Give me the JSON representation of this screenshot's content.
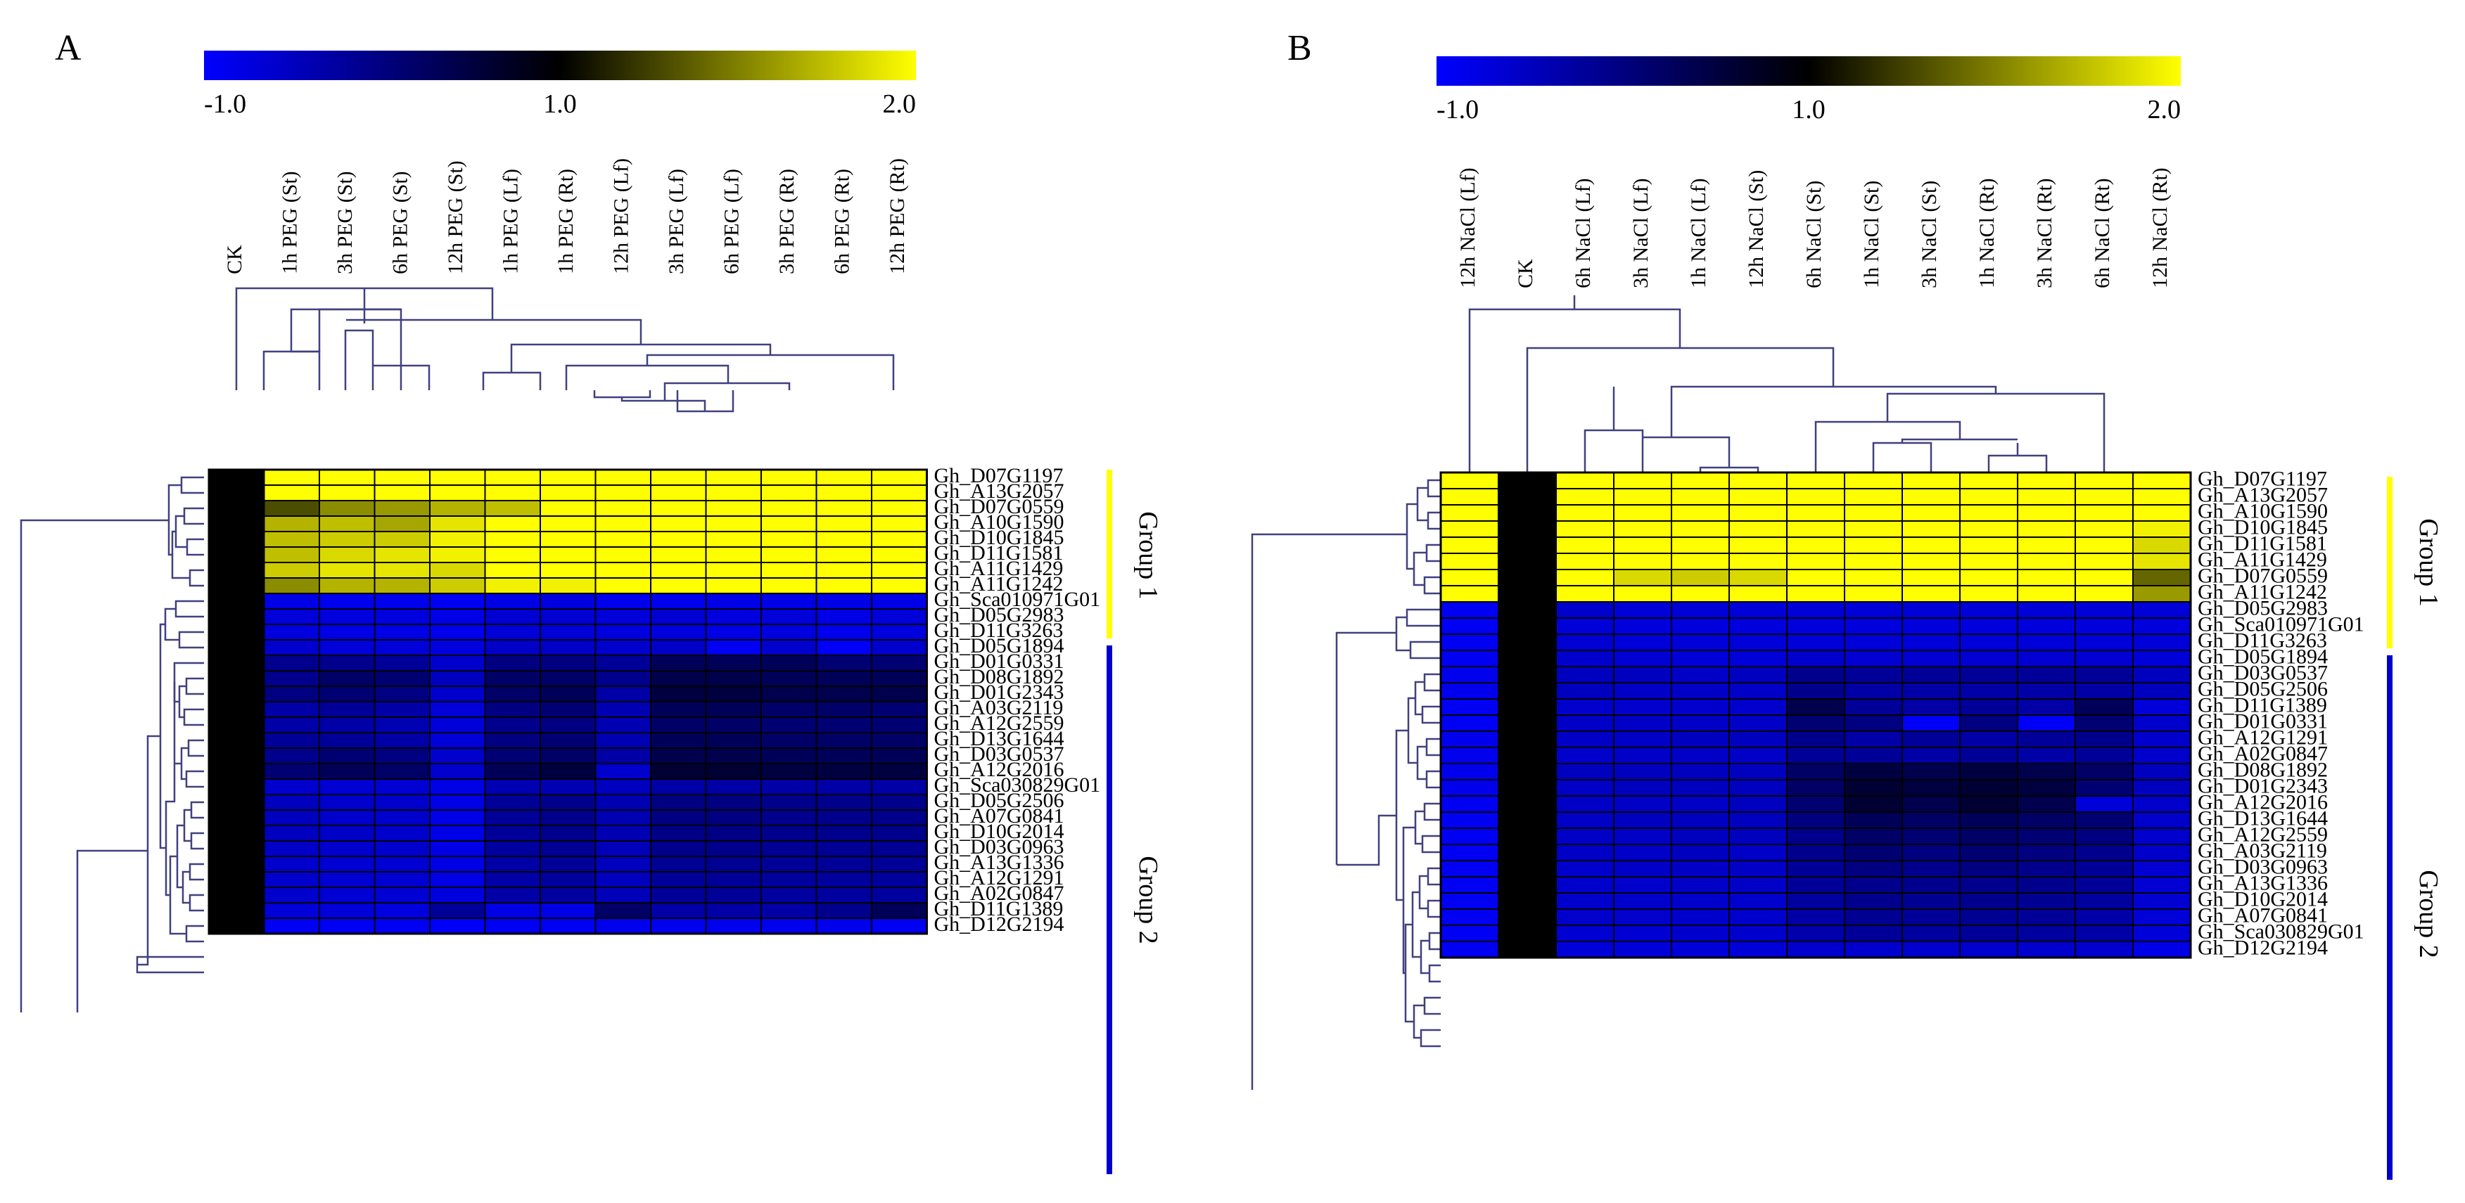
{
  "figure": {
    "panels": [
      "A",
      "B"
    ]
  },
  "chart_data": [
    {
      "type": "heatmap",
      "panel_label": "A",
      "colorbar": {
        "min_label": "-1.0",
        "mid_label": "1.0",
        "max_label": "2.0",
        "min": -1.0,
        "mid": 1.0,
        "max": 2.0,
        "colors": [
          "#0000ff",
          "#000000",
          "#ffff00"
        ]
      },
      "columns": [
        "CK",
        "1h PEG (St)",
        "3h PEG (St)",
        "6h PEG (St)",
        "12h PEG (St)",
        "1h PEG (Lf)",
        "1h PEG (Rt)",
        "12h PEG (Lf)",
        "3h PEG (Lf)",
        "6h PEG (Lf)",
        "3h PEG (Rt)",
        "6h PEG (Rt)",
        "12h PEG (Rt)"
      ],
      "rows": [
        "Gh_D07G1197",
        "Gh_A13G2057",
        "Gh_D07G0559",
        "Gh_A10G1590",
        "Gh_D10G1845",
        "Gh_D11G1581",
        "Gh_A11G1429",
        "Gh_A11G1242",
        "Gh_Sca010971G01",
        "Gh_D05G2983",
        "Gh_D11G3263",
        "Gh_D05G1894",
        "Gh_D01G0331",
        "Gh_D08G1892",
        "Gh_D01G2343",
        "Gh_A03G2119",
        "Gh_A12G2559",
        "Gh_D13G1644",
        "Gh_D03G0537",
        "Gh_A12G2016",
        "Gh_Sca030829G01",
        "Gh_D05G2506",
        "Gh_A07G0841",
        "Gh_D10G2014",
        "Gh_D03G0963",
        "Gh_A13G1336",
        "Gh_A12G1291",
        "Gh_A02G0847",
        "Gh_D11G1389",
        "Gh_D12G2194"
      ],
      "values": [
        [
          1.0,
          2.0,
          2.0,
          2.0,
          2.0,
          2.0,
          2.0,
          2.0,
          2.0,
          2.0,
          2.0,
          2.0,
          2.0
        ],
        [
          1.0,
          2.0,
          2.0,
          2.0,
          2.0,
          2.0,
          2.0,
          2.0,
          2.0,
          2.0,
          2.0,
          2.0,
          2.0
        ],
        [
          1.0,
          1.3,
          1.55,
          1.6,
          1.7,
          1.75,
          2.0,
          2.0,
          2.0,
          2.0,
          2.0,
          2.0,
          2.0
        ],
        [
          1.0,
          1.7,
          1.75,
          1.65,
          1.9,
          2.0,
          2.0,
          2.0,
          2.0,
          2.0,
          2.0,
          2.0,
          2.0
        ],
        [
          1.0,
          1.75,
          1.8,
          1.8,
          1.95,
          2.0,
          2.0,
          2.0,
          2.0,
          2.0,
          2.0,
          2.0,
          2.0
        ],
        [
          1.0,
          1.75,
          1.85,
          1.9,
          1.95,
          2.0,
          2.0,
          2.0,
          2.0,
          2.0,
          2.0,
          2.0,
          2.0
        ],
        [
          1.0,
          1.8,
          1.9,
          1.9,
          1.85,
          2.0,
          2.0,
          2.0,
          2.0,
          2.0,
          2.0,
          2.0,
          2.0
        ],
        [
          1.0,
          1.55,
          1.7,
          1.7,
          1.8,
          1.95,
          1.95,
          2.0,
          2.0,
          2.0,
          2.0,
          2.0,
          2.0
        ],
        [
          1.0,
          -0.8,
          -0.85,
          -0.85,
          -0.9,
          -0.8,
          -0.75,
          -0.85,
          -0.85,
          -0.8,
          -0.8,
          -0.8,
          -0.8
        ],
        [
          1.0,
          -0.7,
          -0.75,
          -0.75,
          -0.8,
          -0.65,
          -0.65,
          -0.7,
          -0.65,
          -0.75,
          -0.7,
          -0.8,
          -0.7
        ],
        [
          1.0,
          -0.75,
          -0.8,
          -0.8,
          -0.85,
          -0.7,
          -0.7,
          -0.75,
          -0.75,
          -0.8,
          -0.75,
          -0.85,
          -0.75
        ],
        [
          1.0,
          -0.6,
          -0.7,
          -0.7,
          -0.75,
          -0.55,
          -0.55,
          -0.6,
          -0.55,
          -0.9,
          -0.6,
          -0.95,
          -0.6
        ],
        [
          1.0,
          -0.1,
          -0.1,
          -0.2,
          -0.6,
          0.0,
          0.0,
          -0.2,
          0.3,
          0.3,
          0.3,
          0.1,
          0.1
        ],
        [
          1.0,
          -0.1,
          0.2,
          0.1,
          -0.5,
          0.2,
          0.2,
          -0.1,
          0.4,
          0.4,
          0.3,
          0.3,
          0.3
        ],
        [
          1.0,
          0.0,
          0.1,
          0.0,
          -0.6,
          0.2,
          0.3,
          -0.3,
          0.5,
          0.5,
          0.4,
          0.4,
          0.4
        ],
        [
          1.0,
          -0.3,
          -0.2,
          -0.3,
          -0.7,
          0.0,
          0.1,
          -0.4,
          0.3,
          0.3,
          0.2,
          0.2,
          0.1
        ],
        [
          1.0,
          -0.3,
          -0.3,
          -0.4,
          -0.7,
          -0.1,
          0.0,
          -0.4,
          0.2,
          0.2,
          0.1,
          0.1,
          0.1
        ],
        [
          1.0,
          -0.2,
          -0.2,
          -0.3,
          -0.7,
          0.0,
          0.1,
          -0.4,
          0.3,
          0.3,
          0.2,
          0.2,
          0.2
        ],
        [
          1.0,
          -0.1,
          0.1,
          0.0,
          -0.6,
          0.1,
          0.2,
          -0.3,
          0.4,
          0.4,
          0.3,
          0.3,
          0.3
        ],
        [
          1.0,
          0.1,
          0.3,
          0.2,
          -0.6,
          0.3,
          0.5,
          -0.6,
          0.6,
          0.6,
          0.5,
          0.5,
          0.5
        ],
        [
          1.0,
          -0.6,
          -0.65,
          -0.65,
          -0.8,
          -0.4,
          -0.4,
          -0.5,
          -0.3,
          -0.3,
          -0.3,
          -0.3,
          -0.3
        ],
        [
          1.0,
          -0.5,
          -0.6,
          -0.6,
          -0.8,
          -0.2,
          -0.1,
          -0.4,
          0.0,
          0.0,
          -0.1,
          -0.1,
          -0.1
        ],
        [
          1.0,
          -0.5,
          -0.6,
          -0.6,
          -0.8,
          -0.2,
          -0.1,
          -0.4,
          0.0,
          0.0,
          -0.1,
          -0.1,
          -0.1
        ],
        [
          1.0,
          -0.5,
          -0.55,
          -0.6,
          -0.8,
          -0.2,
          -0.1,
          -0.4,
          -0.05,
          -0.05,
          -0.1,
          -0.1,
          -0.1
        ],
        [
          1.0,
          -0.55,
          -0.6,
          -0.6,
          -0.8,
          -0.25,
          -0.15,
          -0.45,
          -0.1,
          -0.1,
          -0.15,
          -0.15,
          -0.15
        ],
        [
          1.0,
          -0.6,
          -0.65,
          -0.65,
          -0.8,
          -0.3,
          -0.2,
          -0.5,
          -0.15,
          -0.15,
          -0.2,
          -0.2,
          -0.2
        ],
        [
          1.0,
          -0.6,
          -0.65,
          -0.65,
          -0.8,
          -0.3,
          -0.25,
          -0.5,
          -0.2,
          -0.2,
          -0.25,
          -0.25,
          -0.25
        ],
        [
          1.0,
          -0.6,
          -0.65,
          -0.65,
          -0.75,
          -0.3,
          -0.25,
          -0.45,
          -0.2,
          -0.2,
          -0.25,
          -0.25,
          -0.25
        ],
        [
          1.0,
          -0.7,
          -0.7,
          -0.75,
          -0.2,
          -0.8,
          -0.8,
          0.2,
          -0.3,
          -0.3,
          -0.3,
          -0.1,
          0.3
        ],
        [
          1.0,
          -0.9,
          -0.9,
          -0.9,
          -0.95,
          -0.9,
          -0.9,
          -0.85,
          -0.85,
          -0.85,
          -0.85,
          -0.85,
          -0.9
        ]
      ],
      "groups": [
        {
          "label": "Group 1",
          "from_row": 0,
          "to_row": 7,
          "color": "#ffff00"
        },
        {
          "label": "Group 2",
          "from_row": 8,
          "to_row": 29,
          "color": "#0000cc"
        }
      ]
    },
    {
      "type": "heatmap",
      "panel_label": "B",
      "colorbar": {
        "min_label": "-1.0",
        "mid_label": "1.0",
        "max_label": "2.0",
        "min": -1.0,
        "mid": 1.0,
        "max": 2.0,
        "colors": [
          "#0000ff",
          "#000000",
          "#ffff00"
        ]
      },
      "columns": [
        "12h NaCl (Lf)",
        "CK",
        "6h NaCl (Lf)",
        "3h NaCl (Lf)",
        "1h NaCl (Lf)",
        "12h NaCl (St)",
        "6h NaCl (St)",
        "1h NaCl (St)",
        "3h NaCl (St)",
        "1h NaCl (Rt)",
        "3h NaCl (Rt)",
        "6h NaCl (Rt)",
        "12h NaCl (Rt)"
      ],
      "rows": [
        "Gh_D07G1197",
        "Gh_A13G2057",
        "Gh_A10G1590",
        "Gh_D10G1845",
        "Gh_D11G1581",
        "Gh_A11G1429",
        "Gh_D07G0559",
        "Gh_A11G1242",
        "Gh_D05G2983",
        "Gh_Sca010971G01",
        "Gh_D11G3263",
        "Gh_D05G1894",
        "Gh_D03G0537",
        "Gh_D05G2506",
        "Gh_D11G1389",
        "Gh_D01G0331",
        "Gh_A12G1291",
        "Gh_A02G0847",
        "Gh_D08G1892",
        "Gh_D01G2343",
        "Gh_A12G2016",
        "Gh_D13G1644",
        "Gh_A12G2559",
        "Gh_A03G2119",
        "Gh_D03G0963",
        "Gh_A13G1336",
        "Gh_D10G2014",
        "Gh_A07G0841",
        "Gh_Sca030829G01",
        "Gh_D12G2194"
      ],
      "values": [
        [
          2.0,
          1.0,
          2.0,
          2.0,
          2.0,
          2.0,
          2.0,
          2.0,
          2.0,
          2.0,
          2.0,
          2.0,
          2.0
        ],
        [
          2.0,
          1.0,
          2.0,
          2.0,
          2.0,
          2.0,
          2.0,
          2.0,
          2.0,
          2.0,
          2.0,
          2.0,
          2.0
        ],
        [
          2.0,
          1.0,
          2.0,
          2.0,
          2.0,
          2.0,
          2.0,
          2.0,
          2.0,
          2.0,
          2.0,
          2.0,
          2.0
        ],
        [
          2.0,
          1.0,
          2.0,
          2.0,
          2.0,
          2.0,
          2.0,
          2.0,
          2.0,
          2.0,
          2.0,
          2.0,
          1.95
        ],
        [
          2.0,
          1.0,
          2.0,
          2.0,
          2.0,
          2.0,
          2.0,
          2.0,
          2.0,
          2.0,
          2.0,
          2.0,
          1.85
        ],
        [
          2.0,
          1.0,
          2.0,
          2.0,
          2.0,
          2.0,
          2.0,
          2.0,
          2.0,
          2.0,
          2.0,
          2.0,
          1.9
        ],
        [
          2.0,
          1.0,
          2.0,
          1.85,
          1.8,
          1.85,
          2.0,
          2.0,
          2.0,
          2.0,
          2.0,
          2.0,
          1.4
        ],
        [
          2.0,
          1.0,
          2.0,
          2.0,
          2.0,
          2.0,
          2.0,
          2.0,
          2.0,
          2.0,
          2.0,
          2.0,
          1.6
        ],
        [
          -0.9,
          1.0,
          -0.6,
          -0.7,
          -0.7,
          -0.7,
          -0.7,
          -0.7,
          -0.7,
          -0.7,
          -0.7,
          -0.7,
          -0.7
        ],
        [
          -0.9,
          1.0,
          -0.7,
          -0.75,
          -0.75,
          -0.75,
          -0.75,
          -0.75,
          -0.75,
          -0.75,
          -0.75,
          -0.75,
          -0.75
        ],
        [
          -0.9,
          1.0,
          -0.65,
          -0.7,
          -0.7,
          -0.7,
          -0.7,
          -0.7,
          -0.7,
          -0.7,
          -0.7,
          -0.7,
          -0.7
        ],
        [
          -0.9,
          1.0,
          -0.6,
          -0.65,
          -0.7,
          -0.7,
          -0.6,
          -0.65,
          -0.65,
          -0.65,
          -0.65,
          -0.65,
          -0.7
        ],
        [
          -0.85,
          1.0,
          -0.5,
          -0.5,
          -0.55,
          -0.5,
          -0.1,
          -0.2,
          -0.2,
          -0.2,
          -0.2,
          -0.2,
          -0.5
        ],
        [
          -0.85,
          1.0,
          -0.5,
          -0.55,
          -0.55,
          -0.55,
          -0.1,
          -0.3,
          -0.3,
          -0.3,
          -0.3,
          -0.3,
          -0.5
        ],
        [
          -0.9,
          1.0,
          -0.6,
          -0.6,
          -0.6,
          -0.6,
          0.4,
          -0.2,
          -0.3,
          -0.2,
          -0.3,
          0.3,
          -0.7
        ],
        [
          -0.9,
          1.0,
          -0.55,
          -0.55,
          -0.55,
          -0.55,
          0.1,
          0.0,
          -0.95,
          0.0,
          -0.95,
          0.1,
          -0.6
        ],
        [
          -0.85,
          1.0,
          -0.55,
          -0.55,
          -0.5,
          -0.5,
          -0.1,
          -0.3,
          -0.2,
          -0.3,
          -0.2,
          -0.1,
          -0.6
        ],
        [
          -0.85,
          1.0,
          -0.6,
          -0.55,
          -0.55,
          -0.55,
          -0.2,
          -0.2,
          -0.3,
          -0.2,
          -0.3,
          -0.2,
          -0.6
        ],
        [
          -0.85,
          1.0,
          -0.5,
          -0.5,
          -0.5,
          -0.5,
          0.2,
          0.5,
          0.4,
          0.5,
          0.4,
          0.2,
          -0.5
        ],
        [
          -0.85,
          1.0,
          -0.55,
          -0.5,
          -0.5,
          -0.5,
          0.2,
          0.6,
          0.5,
          0.6,
          0.5,
          0.1,
          -0.5
        ],
        [
          -0.9,
          1.0,
          -0.55,
          -0.55,
          -0.55,
          -0.5,
          0.1,
          0.6,
          0.4,
          0.6,
          0.4,
          -0.7,
          -0.6
        ],
        [
          -0.9,
          1.0,
          -0.55,
          -0.5,
          -0.5,
          -0.5,
          0.0,
          0.3,
          0.2,
          0.3,
          0.2,
          0.1,
          -0.6
        ],
        [
          -0.9,
          1.0,
          -0.55,
          -0.55,
          -0.5,
          -0.5,
          -0.1,
          0.2,
          0.1,
          0.2,
          0.1,
          0.0,
          -0.6
        ],
        [
          -0.9,
          1.0,
          -0.55,
          -0.55,
          -0.5,
          -0.55,
          -0.1,
          0.1,
          0.0,
          0.1,
          0.0,
          -0.1,
          -0.6
        ],
        [
          -0.9,
          1.0,
          -0.6,
          -0.55,
          -0.55,
          -0.55,
          -0.2,
          0.0,
          -0.1,
          0.0,
          -0.1,
          -0.2,
          -0.65
        ],
        [
          -0.9,
          1.0,
          -0.6,
          -0.6,
          -0.55,
          -0.55,
          -0.2,
          -0.1,
          -0.1,
          -0.1,
          -0.1,
          -0.2,
          -0.65
        ],
        [
          -0.9,
          1.0,
          -0.6,
          -0.6,
          -0.6,
          -0.6,
          -0.25,
          -0.1,
          -0.15,
          -0.1,
          -0.15,
          -0.25,
          -0.65
        ],
        [
          -0.9,
          1.0,
          -0.6,
          -0.6,
          -0.6,
          -0.6,
          -0.3,
          -0.15,
          -0.2,
          -0.15,
          -0.2,
          -0.3,
          -0.7
        ],
        [
          -0.9,
          1.0,
          -0.65,
          -0.65,
          -0.6,
          -0.6,
          -0.35,
          -0.2,
          -0.25,
          -0.2,
          -0.25,
          -0.3,
          -0.7
        ],
        [
          -0.9,
          1.0,
          -0.7,
          -0.7,
          -0.7,
          -0.7,
          -0.6,
          -0.6,
          -0.6,
          -0.6,
          -0.6,
          -0.6,
          -0.8
        ]
      ],
      "groups": [
        {
          "label": "Group 1",
          "from_row": 0,
          "to_row": 7,
          "color": "#ffff00"
        },
        {
          "label": "Group 2",
          "from_row": 8,
          "to_row": 29,
          "color": "#0000cc"
        }
      ]
    }
  ]
}
